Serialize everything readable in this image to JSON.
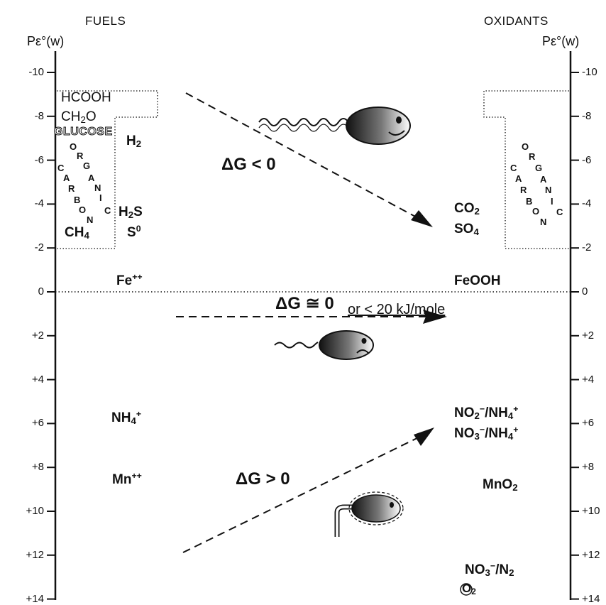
{
  "header": {
    "fuels": "FUELS",
    "oxidants": "OXIDANTS"
  },
  "axis": {
    "left_label": "Pε°(w)",
    "right_label": "Pε°(w)",
    "ticks": [
      {
        "value": -10,
        "label": "-10"
      },
      {
        "value": -8,
        "label": "-8"
      },
      {
        "value": -6,
        "label": "-6"
      },
      {
        "value": -4,
        "label": "-4"
      },
      {
        "value": -2,
        "label": "-2"
      },
      {
        "value": 0,
        "label": "0"
      },
      {
        "value": 2,
        "label": "+2"
      },
      {
        "value": 4,
        "label": "+4"
      },
      {
        "value": 6,
        "label": "+6"
      },
      {
        "value": 8,
        "label": "+8"
      },
      {
        "value": 10,
        "label": "+10"
      },
      {
        "value": 12,
        "label": "+12"
      },
      {
        "value": 14,
        "label": "+14"
      }
    ]
  },
  "fuels": {
    "hcooh": "HCOOH",
    "ch2o_main": "CH",
    "ch2o_sub": "2",
    "ch2o_tail": "O",
    "glucose": "GLUCOSE",
    "h2_main": "H",
    "h2_sub": "2",
    "h2s_main": "H",
    "h2s_sub": "2",
    "h2s_tail": "S",
    "ch4_main": "CH",
    "ch4_sub": "4",
    "s0_main": "S",
    "s0_sup": "0",
    "fe_main": "Fe",
    "fe_sup": "++",
    "nh4_main": "NH",
    "nh4_sub": "4",
    "nh4_sup": "+",
    "mn_main": "Mn",
    "mn_sup": "++"
  },
  "organic_carbon_letters": [
    "O",
    "R",
    "G",
    "A",
    "N",
    "I",
    "C",
    "C",
    "A",
    "R",
    "B",
    "O",
    "N"
  ],
  "oxidants": {
    "co2_main": "CO",
    "co2_sub": "2",
    "so4_main": "SO",
    "so4_sub": "4",
    "feooh": "FeOOH",
    "no2nh4": {
      "a": "NO",
      "a_sub": "2",
      "a_sup": "−",
      "b": "/NH",
      "b_sub": "4",
      "b_sup": "+"
    },
    "no3nh4": {
      "a": "NO",
      "a_sub": "3",
      "a_sup": "−",
      "b": "/NH",
      "b_sub": "4",
      "b_sup": "+"
    },
    "mno2_main": "MnO",
    "mno2_sub": "2",
    "no3n2": {
      "a": "NO",
      "a_sub": "3",
      "a_sup": "−",
      "b": "/N",
      "b_sub": "2"
    },
    "o2_main": "O",
    "o2_sub": "2"
  },
  "energy_labels": {
    "negative": "ΔG < 0",
    "zero": "ΔG ≅ 0",
    "zero_note": "or < 20 kJ/mole",
    "positive": "ΔG > 0"
  },
  "icons": [
    "happy-bacterium-icon",
    "sad-bacterium-icon",
    "bacterium-with-straw-icon"
  ]
}
